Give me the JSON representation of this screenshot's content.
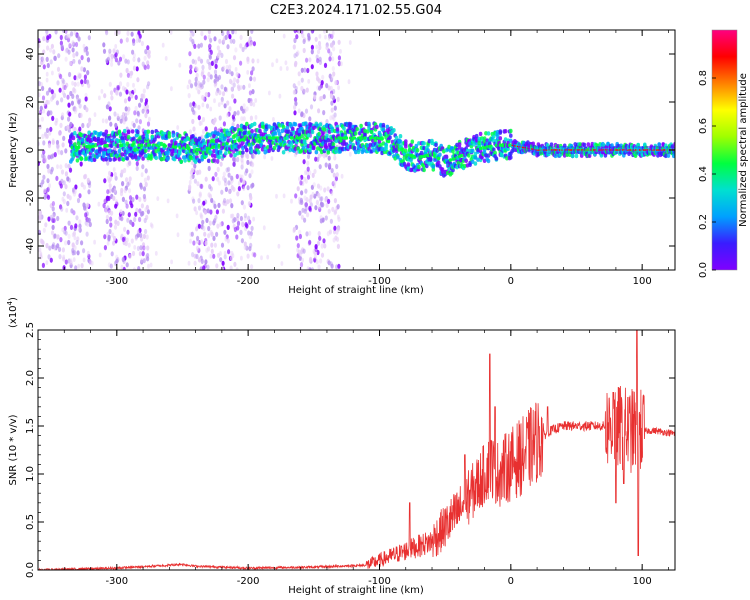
{
  "title": "C2E3.2024.171.02.55.G04",
  "colors": {
    "snr_line": "#e83030",
    "spectrum_ramp": [
      "#ffffff",
      "#e6cdf7",
      "#b38cf0",
      "#8000ff",
      "#3a1cff",
      "#00a0ff",
      "#00e0d0",
      "#00ff40",
      "#a0ff00",
      "#ffff00",
      "#ff8000",
      "#ff0000",
      "#ff0080"
    ]
  },
  "chart_data": [
    {
      "type": "heatmap",
      "xlabel": "Height of straight line (km)",
      "ylabel": "Frequency (Hz)",
      "xlim": [
        -360,
        125
      ],
      "ylim": [
        -50,
        50
      ],
      "xticks": [
        -300,
        -200,
        -100,
        0,
        100
      ],
      "yticks": [
        -40,
        -20,
        0,
        20,
        40
      ],
      "colorbar": {
        "label": "Normalized spectral amplitude",
        "range": [
          0.0,
          1.0
        ],
        "ticks": [
          0.0,
          0.2,
          0.4,
          0.6,
          0.8
        ]
      },
      "noise_bands_km": [
        [
          -360,
          -320
        ],
        [
          -310,
          -275
        ],
        [
          -245,
          -195
        ],
        [
          -165,
          -130
        ]
      ],
      "centerline": {
        "x_km": [
          -335,
          -300,
          -270,
          -250,
          -235,
          -200,
          -180,
          -160,
          -140,
          -120,
          -100,
          -90,
          -80,
          -70,
          -60,
          -50,
          -40,
          -30,
          -20,
          -10,
          0,
          10,
          20,
          40,
          60,
          80,
          100,
          125
        ],
        "freq_hz": [
          1,
          2,
          2,
          1,
          0,
          5,
          5,
          5,
          5,
          5,
          5,
          3,
          -2,
          -3,
          -2,
          -5,
          -3,
          0,
          1,
          2,
          2,
          1,
          0,
          0,
          0,
          0,
          0,
          0
        ]
      }
    },
    {
      "type": "line",
      "xlabel": "Height of straight line (km)",
      "ylabel": "SNR (10 * v/v)",
      "y_scale_label": "(x10",
      "y_scale_exp": "4",
      "y_scale": 10000,
      "xlim": [
        -360,
        125
      ],
      "ylim": [
        0.0,
        2.5
      ],
      "xticks": [
        -300,
        -200,
        -100,
        0,
        100
      ],
      "yticks": [
        "0.0",
        "0.5",
        "1.0",
        "1.5",
        "2.0",
        "2.5"
      ],
      "envelope": {
        "x_km": [
          -360,
          -300,
          -260,
          -250,
          -240,
          -200,
          -150,
          -110,
          -100,
          -80,
          -60,
          -40,
          -30,
          -20,
          -15,
          -10,
          0,
          10,
          20,
          30,
          40,
          60,
          80,
          90,
          100,
          110,
          125
        ],
        "snr_x1e4": [
          0.0,
          0.02,
          0.05,
          0.06,
          0.04,
          0.02,
          0.03,
          0.05,
          0.1,
          0.2,
          0.3,
          0.6,
          0.8,
          1.0,
          1.1,
          1.0,
          1.1,
          1.2,
          1.35,
          1.45,
          1.5,
          1.5,
          1.5,
          1.45,
          1.45,
          1.45,
          1.42
        ]
      },
      "spikes": [
        {
          "x_km": -77,
          "snr_x1e4": 0.7
        },
        {
          "x_km": -35,
          "snr_x1e4": 1.2
        },
        {
          "x_km": -16,
          "snr_x1e4": 2.25
        },
        {
          "x_km": -12,
          "snr_x1e4": 1.7
        },
        {
          "x_km": 28,
          "snr_x1e4": 1.7
        },
        {
          "x_km": 78,
          "snr_x1e4": 1.85
        },
        {
          "x_km": 96,
          "snr_x1e4": 2.5
        }
      ],
      "dips": [
        {
          "x_km": 80,
          "snr_x1e4": 0.7
        },
        {
          "x_km": 86,
          "snr_x1e4": 0.9
        },
        {
          "x_km": 97,
          "snr_x1e4": 0.15
        }
      ]
    }
  ]
}
